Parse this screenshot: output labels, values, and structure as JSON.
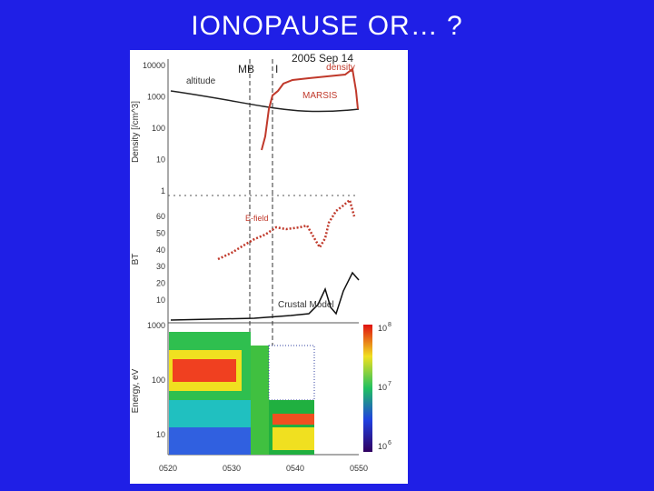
{
  "title": "IONOPAUSE OR… ?",
  "figure": {
    "date": "2005 Sep 14",
    "density_label": "density",
    "altitude_label": "altitude",
    "mb_label": "MB",
    "i_label": "I",
    "marsis_label": "MARSIS",
    "top_ylabel": "Density [/cm^3]",
    "top_yticks": [
      "10000",
      "1000",
      "100",
      "10",
      "1"
    ],
    "efield_label": "E-field",
    "mid_ylabel": "BT",
    "mid_yticks": [
      "60",
      "50",
      "40",
      "30",
      "20",
      "10"
    ],
    "crustal_label": "Crustal Model",
    "bottom_ylabel": "Energy, eV",
    "bottom_yticks": [
      "1000",
      "100",
      "10"
    ],
    "colorbar_ticks": [
      {
        "base": "10",
        "exp": "8"
      },
      {
        "base": "10",
        "exp": "7"
      },
      {
        "base": "10",
        "exp": "6"
      }
    ],
    "time_ticks": [
      "0520",
      "0530",
      "0540",
      "0550"
    ]
  }
}
